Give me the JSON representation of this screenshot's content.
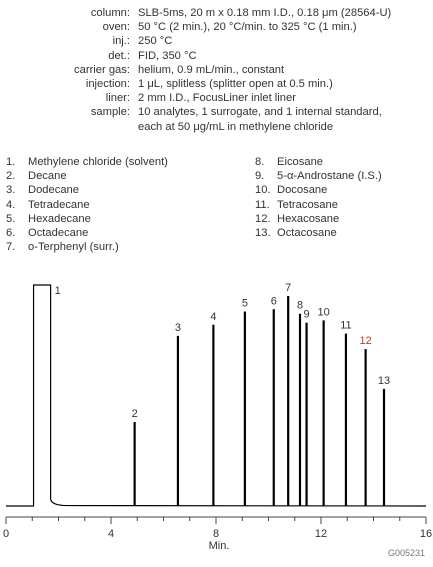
{
  "conditions": [
    {
      "label": "column:",
      "value": "SLB-5ms, 20 m x 0.18 mm I.D., 0.18 μm (28564-U)"
    },
    {
      "label": "oven:",
      "value": "50 °C (2 min.), 20 °C/min. to 325 °C (1 min.)"
    },
    {
      "label": "inj.:",
      "value": "250 °C"
    },
    {
      "label": "det.:",
      "value": "FID, 350 °C"
    },
    {
      "label": "carrier gas:",
      "value": "helium, 0.9 mL/min., constant"
    },
    {
      "label": "injection:",
      "value": "1 μL, splitless (splitter open at 0.5 min.)"
    },
    {
      "label": "liner:",
      "value": "2 mm I.D., FocusLiner inlet liner"
    },
    {
      "label": "sample:",
      "value": "10 analytes, 1 surrogate, and 1 internal standard,"
    },
    {
      "label": "",
      "value": "each at 50 μg/mL in methylene chloride"
    }
  ],
  "peak_list": [
    {
      "num": "1.",
      "name": "Methylene chloride (solvent)"
    },
    {
      "num": "2.",
      "name": "Decane"
    },
    {
      "num": "3.",
      "name": "Dodecane"
    },
    {
      "num": "4.",
      "name": "Tetradecane"
    },
    {
      "num": "5.",
      "name": "Hexadecane"
    },
    {
      "num": "6.",
      "name": "Octadecane"
    },
    {
      "num": "7.",
      "name": "o-Terphenyl (surr.)"
    },
    {
      "num": "8.",
      "name": "Eicosane"
    },
    {
      "num": "9.",
      "name": "5-α-Androstane (I.S.)"
    },
    {
      "num": "10.",
      "name": "Docosane"
    },
    {
      "num": "11.",
      "name": "Tetracosane"
    },
    {
      "num": "12.",
      "name": "Hexacosane"
    },
    {
      "num": "13.",
      "name": "Octacosane"
    }
  ],
  "figure_code": "G005231",
  "chart_data": {
    "type": "line",
    "xlabel": "Min.",
    "ylabel": "",
    "xlim": [
      0,
      16
    ],
    "ylim": [
      0,
      100
    ],
    "x_ticks": [
      0,
      4,
      8,
      12,
      16
    ],
    "solvent_peak": {
      "label": "1",
      "start": 1.05,
      "end": 1.7,
      "height": 100
    },
    "peaks": [
      {
        "label": "2",
        "rt": 4.9,
        "height": 38
      },
      {
        "label": "3",
        "rt": 6.55,
        "height": 77
      },
      {
        "label": "4",
        "rt": 7.9,
        "height": 82
      },
      {
        "label": "5",
        "rt": 9.1,
        "height": 88
      },
      {
        "label": "6",
        "rt": 10.2,
        "height": 89
      },
      {
        "label": "7",
        "rt": 10.75,
        "height": 95
      },
      {
        "label": "8",
        "rt": 11.2,
        "height": 87
      },
      {
        "label": "9",
        "rt": 11.45,
        "height": 83
      },
      {
        "label": "10",
        "rt": 12.1,
        "height": 84
      },
      {
        "label": "11",
        "rt": 12.95,
        "height": 78
      },
      {
        "label": "12",
        "rt": 13.7,
        "height": 71
      },
      {
        "label": "13",
        "rt": 14.4,
        "height": 53
      }
    ],
    "colors": {
      "trace": "#000000",
      "axis": "#444444",
      "text": "#333333",
      "highlight_label": "#c0392b"
    },
    "highlight_peak": "12"
  }
}
